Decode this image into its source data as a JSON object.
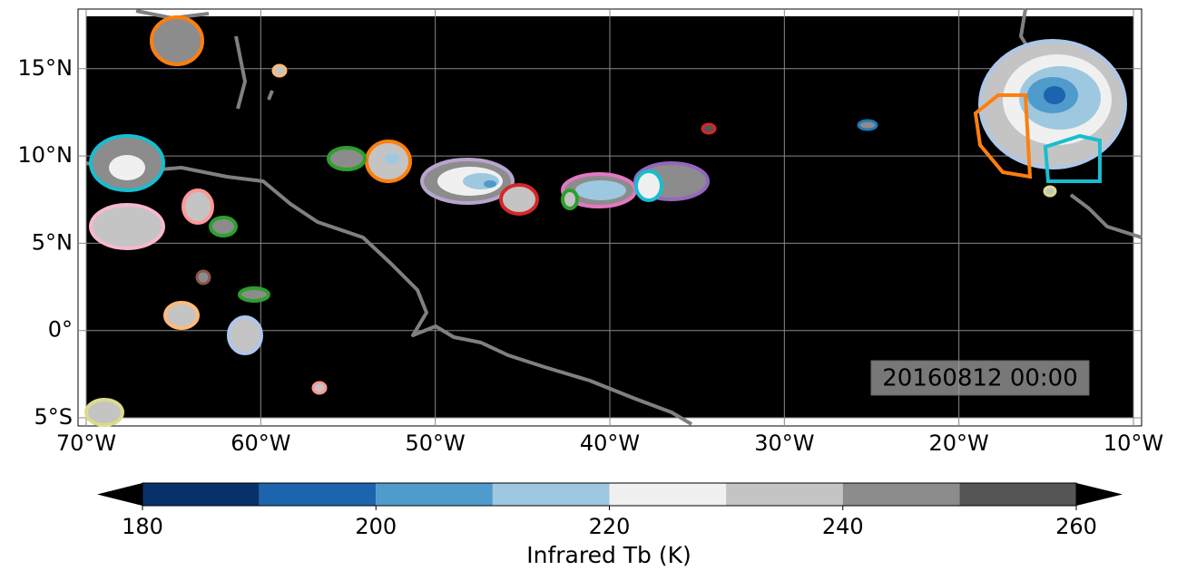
{
  "map": {
    "extent": [
      -70,
      -10,
      -5,
      18
    ],
    "lon_ticks": [
      {
        "value": -70,
        "label": "70°W"
      },
      {
        "value": -60,
        "label": "60°W"
      },
      {
        "value": -50,
        "label": "50°W"
      },
      {
        "value": -40,
        "label": "40°W"
      },
      {
        "value": -30,
        "label": "30°W"
      },
      {
        "value": -20,
        "label": "20°W"
      },
      {
        "value": -10,
        "label": "10°W"
      }
    ],
    "lat_ticks": [
      {
        "value": 15,
        "label": "15°N"
      },
      {
        "value": 10,
        "label": "10°N"
      },
      {
        "value": 5,
        "label": "5°N"
      },
      {
        "value": 0,
        "label": "0°"
      },
      {
        "value": -5,
        "label": "5°S"
      }
    ],
    "timestamp": "20160812 00:00"
  },
  "colorbar": {
    "label": "Infrared Tb (K)",
    "levels": [
      180,
      190,
      200,
      210,
      220,
      230,
      240,
      250,
      260
    ],
    "colors": [
      "#08306b",
      "#1c64ad",
      "#4f9bcb",
      "#9ec8e0",
      "#f0f0f0",
      "#c4c4c4",
      "#8c8c8c",
      "#555555"
    ],
    "ticks": [
      180,
      200,
      220,
      240,
      260
    ]
  }
}
